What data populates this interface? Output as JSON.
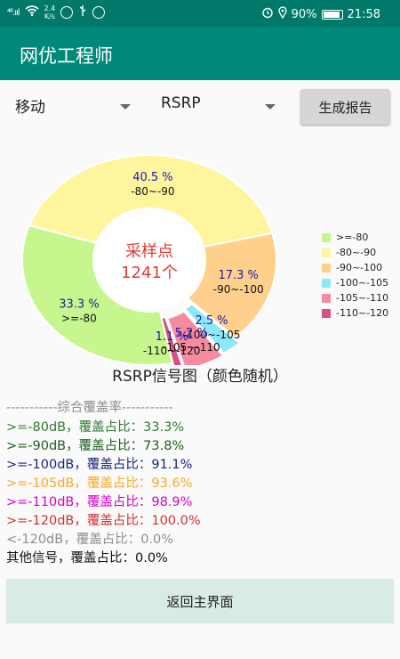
{
  "status_bar": {
    "signal": "⁴⁶.ııl",
    "speed_value": "2.4",
    "speed_unit": "K/s",
    "battery": "90%",
    "time": "21:58"
  },
  "app": {
    "title": "网优工程师"
  },
  "controls": {
    "carrier": "移动",
    "metric": "RSRP",
    "generate_label": "生成报告"
  },
  "chart_data": {
    "type": "pie",
    "title": "RSRP信号图（颜色随机）",
    "center_label": "采样点",
    "center_value": "1241个",
    "slices": [
      {
        "label": ">=-80",
        "percent": 33.3,
        "percent_text": "33.3 %",
        "color": "#c6f68d"
      },
      {
        "label": "-80~-90",
        "percent": 40.5,
        "percent_text": "40.5 %",
        "color": "#fff59d"
      },
      {
        "label": "-90~-100",
        "percent": 17.3,
        "percent_text": "17.3 %",
        "color": "#ffd08c"
      },
      {
        "label": "-100~-105",
        "percent": 2.5,
        "percent_text": "2.5 %",
        "color": "#8ce8f6"
      },
      {
        "label": "-105~-110",
        "percent": 5.2,
        "percent_text": "5.2 %",
        "color": "#f48b9e"
      },
      {
        "label": "-110~-120",
        "percent": 1.1,
        "percent_text": "1.1 %",
        "color": "#d94e84"
      }
    ],
    "slice_label_colors": {
      "percent": "#1a1aa6",
      "range": "#111111"
    }
  },
  "coverage": {
    "header": "-----------综合覆盖率-----------",
    "lines": [
      {
        "text": ">=-80dB，覆盖占比：33.3%",
        "color": "#2e7d32"
      },
      {
        "text": ">=-90dB，覆盖占比：73.8%",
        "color": "#1b5e20"
      },
      {
        "text": ">=-100dB，覆盖占比：91.1%",
        "color": "#1a237e"
      },
      {
        "text": ">=-105dB，覆盖占比：93.6%",
        "color": "#f9a825"
      },
      {
        "text": ">=-110dB，覆盖占比：98.9%",
        "color": "#d500c9"
      },
      {
        "text": ">=-120dB，覆盖占比：100.0%",
        "color": "#d32f2f"
      },
      {
        "text": "<-120dB，覆盖占比：0.0%",
        "color": "#8e8e8e"
      },
      {
        "text": "其他信号，覆盖占比：0.0%",
        "color": "#111111"
      }
    ],
    "header_color": "#8e8e8e"
  },
  "return_label": "返回主界面"
}
